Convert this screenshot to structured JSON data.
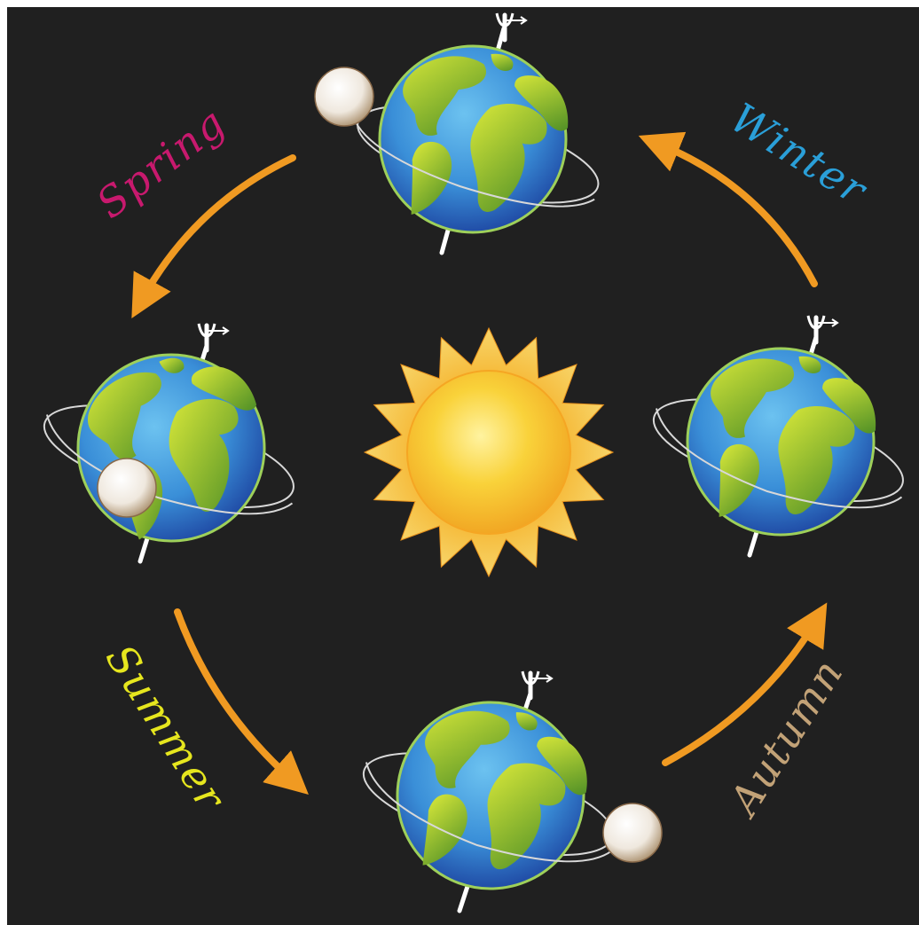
{
  "seasons": {
    "spring": {
      "label": "Spring",
      "color": "#c8196e"
    },
    "summer": {
      "label": "Summer",
      "color": "#e6e61e"
    },
    "autumn": {
      "label": "Autumn",
      "color": "#c2a277"
    },
    "winter": {
      "label": "Winter",
      "color": "#2a9fd8"
    }
  },
  "colors": {
    "background": "#202020",
    "sun_core": "#f9c62a",
    "sun_rays": "#f3a72c",
    "arrow": "#f09a22",
    "ocean": "#3f8fd8",
    "ocean_dark": "#1f3f9a",
    "land": "#b2cf2a",
    "land_dark": "#5c9a2a",
    "orbit": "#d8d8d8",
    "moon": "#f4f0ea"
  }
}
